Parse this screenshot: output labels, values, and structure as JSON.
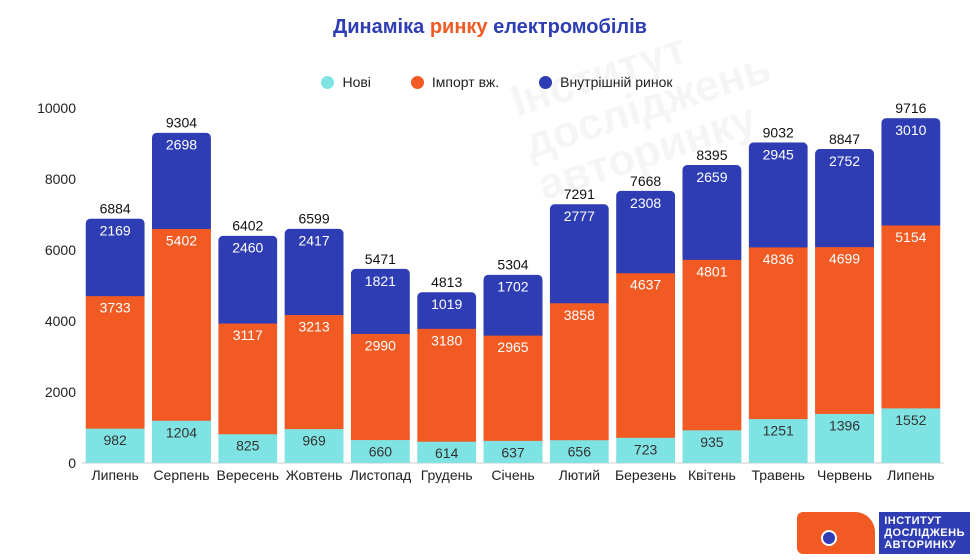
{
  "title": {
    "part1": "Динаміка ",
    "part2": "ринку",
    "part3": " електромобілів"
  },
  "colors": {
    "novi": "#7fe3e3",
    "import": "#f15a22",
    "domestic": "#2e3db3",
    "title_blue": "#2e3db3"
  },
  "logo": {
    "line1": "ІНСТИТУТ",
    "line2": "ДОСЛІДЖЕНЬ",
    "line3": "АВТОРИНКУ"
  },
  "watermark": {
    "line1": "Інститут",
    "line2": "досліджень",
    "line3": "авторинку"
  },
  "chart_data": {
    "type": "bar",
    "stacked": true,
    "title": "Динаміка ринку електромобілів",
    "xlabel": "",
    "ylabel": "",
    "ylim": [
      0,
      10000
    ],
    "yticks": [
      "0",
      "2000",
      "4000",
      "6000",
      "8000",
      "10000"
    ],
    "categories": [
      "Липень",
      "Серпень",
      "Вересень",
      "Жовтень",
      "Листопад",
      "Грудень",
      "Січень",
      "Лютий",
      "Березень",
      "Квітень",
      "Травень",
      "Червень",
      "Липень"
    ],
    "series": [
      {
        "name": "Нові",
        "values": [
          982,
          1204,
          825,
          969,
          660,
          614,
          637,
          656,
          723,
          935,
          1251,
          1396,
          1552
        ]
      },
      {
        "name": "Імпорт вж.",
        "values": [
          3733,
          5402,
          3117,
          3213,
          2990,
          3180,
          2965,
          3858,
          4637,
          4801,
          4836,
          4699,
          5154
        ]
      },
      {
        "name": "Внутрішній ринок",
        "values": [
          2169,
          2698,
          2460,
          2417,
          1821,
          1019,
          1702,
          2777,
          2308,
          2659,
          2945,
          2752,
          3010
        ]
      }
    ],
    "totals": [
      6884,
      9304,
      6402,
      6599,
      5471,
      4813,
      5304,
      7291,
      7668,
      8395,
      9032,
      8847,
      9716
    ],
    "legend_position": "top",
    "grid": false
  }
}
